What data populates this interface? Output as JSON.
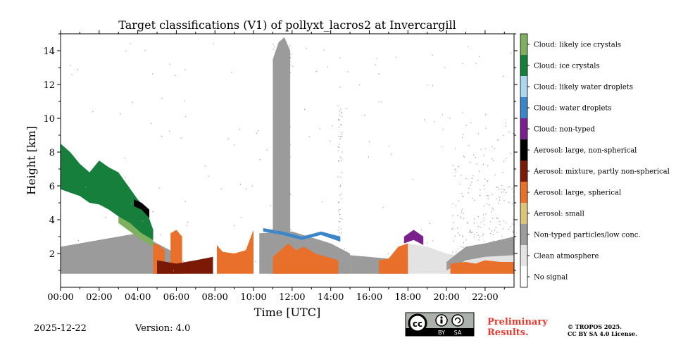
{
  "chart_data": {
    "type": "heatmap",
    "title": "Target classifications (V1) of pollyxt_lacros2 at Invercargill",
    "xlabel": "Time [UTC]",
    "ylabel": "Height [km]",
    "xlim": [
      0,
      23.5
    ],
    "ylim": [
      0,
      15
    ],
    "x_ticks": [
      "00:00",
      "02:00",
      "04:00",
      "06:00",
      "08:00",
      "10:00",
      "12:00",
      "14:00",
      "16:00",
      "18:00",
      "20:00",
      "22:00"
    ],
    "x_tick_values": [
      0,
      2,
      4,
      6,
      8,
      10,
      12,
      14,
      16,
      18,
      20,
      22
    ],
    "y_ticks": [
      "2",
      "4",
      "6",
      "8",
      "10",
      "12",
      "14"
    ],
    "y_tick_values": [
      2,
      4,
      6,
      8,
      10,
      12,
      14
    ],
    "data_bottom_km": 0.8,
    "classes": [
      {
        "label": "Cloud: likely ice crystals",
        "color": "#7fb05e"
      },
      {
        "label": "Cloud: ice crystals",
        "color": "#157f3b"
      },
      {
        "label": "Cloud: likely water droplets",
        "color": "#aed6f1"
      },
      {
        "label": "Cloud: water droplets",
        "color": "#3a86c8"
      },
      {
        "label": "Cloud: non-typed",
        "color": "#7b1f8c"
      },
      {
        "label": "Aerosol: large, non-spherical",
        "color": "#000000"
      },
      {
        "label": "Aerosol: mixture, partly non-spherical",
        "color": "#7a1a06"
      },
      {
        "label": "Aerosol: large, spherical",
        "color": "#e8702a"
      },
      {
        "label": "Aerosol: small",
        "color": "#dcc57a"
      },
      {
        "label": "Non-typed particles/low conc.",
        "color": "#9b9b9b"
      },
      {
        "label": "Clean atmosphere",
        "color": "#e3e3e3"
      },
      {
        "label": "No signal",
        "color": "#ffffff"
      }
    ],
    "regions": [
      {
        "name": "clean-atmosphere-band",
        "cls": 10,
        "x": [
          18.0,
          19.0,
          20.0,
          21.0,
          22.0,
          23.5
        ],
        "top": [
          2.6,
          2.4,
          2.0,
          1.8,
          1.8,
          1.9
        ],
        "base": [
          0.8,
          0.8,
          0.8,
          0.8,
          0.8,
          0.8
        ]
      },
      {
        "name": "non-typed-low-layer",
        "cls": 9,
        "x": [
          0.0,
          1.0,
          2.0,
          3.0,
          4.0,
          5.0,
          6.0
        ],
        "top": [
          2.4,
          2.6,
          2.8,
          3.0,
          3.2,
          2.6,
          2.0
        ],
        "base": [
          0.8,
          0.8,
          0.8,
          0.8,
          0.8,
          0.8,
          0.8
        ]
      },
      {
        "name": "non-typed-plume-1130",
        "cls": 9,
        "x": [
          11.0,
          11.3,
          11.6,
          11.9
        ],
        "top": [
          13.5,
          14.5,
          14.8,
          14.0
        ],
        "base": [
          2.8,
          2.8,
          2.8,
          2.8
        ]
      },
      {
        "name": "non-typed-midday",
        "cls": 9,
        "x": [
          10.3,
          12.0,
          14.0,
          15.0
        ],
        "top": [
          3.2,
          3.3,
          2.6,
          2.0
        ],
        "base": [
          0.8,
          0.8,
          0.8,
          0.8
        ]
      },
      {
        "name": "non-typed-afternoon",
        "cls": 9,
        "x": [
          15.0,
          17.0,
          18.0
        ],
        "top": [
          1.9,
          1.7,
          2.0
        ],
        "base": [
          0.8,
          0.8,
          0.8
        ]
      },
      {
        "name": "non-typed-evening",
        "cls": 9,
        "x": [
          20.0,
          21.0,
          22.0,
          23.5
        ],
        "top": [
          1.5,
          2.4,
          2.6,
          3.0
        ],
        "base": [
          1.0,
          1.6,
          1.8,
          1.9
        ]
      },
      {
        "name": "ice-cloud-slope",
        "cls": 1,
        "x": [
          0.0,
          0.5,
          1.0,
          1.5,
          2.0,
          2.5,
          3.0,
          3.5,
          4.0,
          4.4,
          4.8
        ],
        "top": [
          8.5,
          8.0,
          7.3,
          6.8,
          7.5,
          7.1,
          6.8,
          6.0,
          5.2,
          4.7,
          3.4
        ],
        "base": [
          5.8,
          5.6,
          5.4,
          5.0,
          4.9,
          4.6,
          4.2,
          3.8,
          3.2,
          2.9,
          2.4
        ]
      },
      {
        "name": "ice-likely-edge",
        "cls": 0,
        "x": [
          3.0,
          3.6,
          4.2,
          4.8
        ],
        "top": [
          4.2,
          3.8,
          3.2,
          2.8
        ],
        "base": [
          3.8,
          3.3,
          2.8,
          2.4
        ]
      },
      {
        "name": "aerosol-black-streak",
        "cls": 5,
        "x": [
          3.8,
          4.2,
          4.6
        ],
        "top": [
          5.2,
          5.0,
          4.6
        ],
        "base": [
          4.8,
          4.6,
          4.1
        ]
      },
      {
        "name": "aerosol-orange-0500",
        "cls": 7,
        "x": [
          4.8,
          5.1,
          5.4
        ],
        "top": [
          2.6,
          2.5,
          2.2
        ],
        "base": [
          0.8,
          0.8,
          0.8
        ]
      },
      {
        "name": "aerosol-orange-0600",
        "cls": 7,
        "x": [
          5.7,
          6.0,
          6.3
        ],
        "top": [
          3.2,
          3.4,
          3.0
        ],
        "base": [
          0.8,
          0.8,
          0.8
        ]
      },
      {
        "name": "aerosol-orange-0800",
        "cls": 7,
        "x": [
          8.1,
          8.4,
          9.0,
          9.6,
          10.0
        ],
        "top": [
          2.5,
          2.1,
          2.0,
          2.2,
          3.4
        ],
        "base": [
          0.8,
          0.8,
          0.8,
          0.8,
          0.8
        ]
      },
      {
        "name": "aerosol-orange-1130",
        "cls": 7,
        "x": [
          11.0,
          11.4,
          11.8,
          12.2,
          12.6,
          13.2,
          13.8,
          14.4
        ],
        "top": [
          1.8,
          2.2,
          2.6,
          2.2,
          2.4,
          2.0,
          1.8,
          1.6
        ],
        "base": [
          0.8,
          0.8,
          0.8,
          0.8,
          0.8,
          0.8,
          0.8,
          0.8
        ]
      },
      {
        "name": "aerosol-orange-1700",
        "cls": 7,
        "x": [
          16.5,
          17.0,
          17.5,
          18.0
        ],
        "top": [
          1.6,
          1.7,
          2.4,
          2.6
        ],
        "base": [
          0.8,
          0.8,
          0.8,
          0.8
        ]
      },
      {
        "name": "aerosol-orange-evening",
        "cls": 7,
        "x": [
          20.2,
          21.0,
          21.5,
          22.0,
          22.8,
          23.5
        ],
        "top": [
          1.4,
          1.5,
          1.4,
          1.6,
          1.5,
          1.5
        ],
        "base": [
          0.8,
          0.8,
          0.8,
          0.8,
          0.8,
          0.8
        ]
      },
      {
        "name": "mixture-night",
        "cls": 6,
        "x": [
          5.0,
          6.0,
          7.0,
          7.9
        ],
        "top": [
          1.6,
          1.4,
          1.6,
          1.8
        ],
        "base": [
          0.8,
          0.8,
          0.8,
          0.8
        ]
      },
      {
        "name": "water-cloud-tops",
        "cls": 3,
        "x": [
          10.5,
          11.5,
          12.5,
          13.5,
          14.5
        ],
        "top": [
          3.5,
          3.3,
          3.0,
          3.3,
          3.0
        ],
        "base": [
          3.3,
          3.1,
          2.8,
          3.1,
          2.7
        ]
      },
      {
        "name": "cloud-non-typed-1800",
        "cls": 4,
        "x": [
          17.8,
          18.3,
          18.8
        ],
        "top": [
          3.0,
          3.4,
          3.0
        ],
        "base": [
          2.6,
          2.8,
          2.5
        ]
      }
    ]
  },
  "footer": {
    "date": "2025-12-22",
    "version": "Version: 4.0",
    "preliminary_line1": "Preliminary",
    "preliminary_line2": "Results.",
    "copyright_line1": "© TROPOS 2025.",
    "copyright_line2": "CC BY SA 4.0 License.",
    "license_badge": {
      "cc": "cc",
      "by": "BY",
      "sa": "SA"
    }
  }
}
